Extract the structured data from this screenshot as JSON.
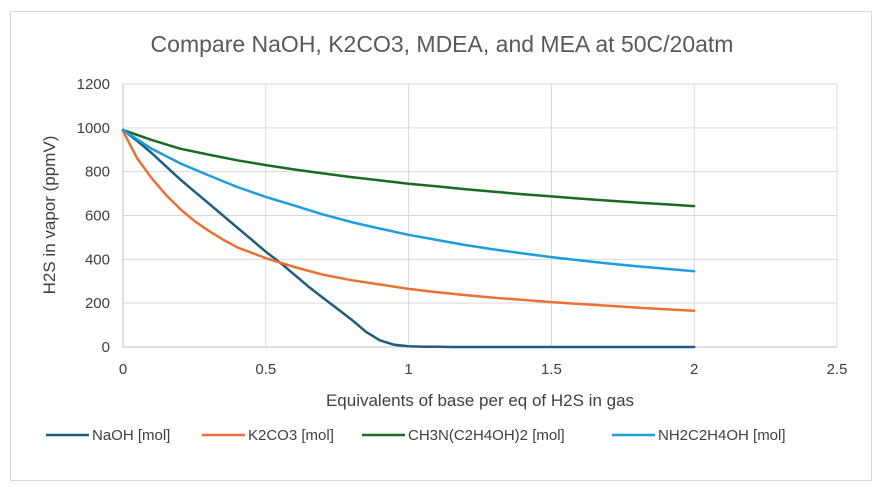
{
  "chart_data": {
    "type": "line",
    "title": "Compare NaOH, K2CO3, MDEA, and MEA at 50C/20atm",
    "xlabel": "Equivalents of base per eq of H2S in gas",
    "ylabel": "H2S in vapor (ppmV)",
    "xlim": [
      0,
      2.5
    ],
    "ylim": [
      0,
      1200
    ],
    "x_ticks": [
      "0",
      "0.5",
      "1",
      "1.5",
      "2",
      "2.5"
    ],
    "y_ticks": [
      "0",
      "200",
      "400",
      "600",
      "800",
      "1000",
      "1200"
    ],
    "grid": true,
    "legend_position": "bottom",
    "series": [
      {
        "name": "NaOH [mol]",
        "color": "#1f5c7e",
        "x": [
          0,
          0.05,
          0.1,
          0.15,
          0.2,
          0.25,
          0.3,
          0.35,
          0.4,
          0.45,
          0.5,
          0.55,
          0.6,
          0.65,
          0.7,
          0.75,
          0.8,
          0.85,
          0.9,
          0.95,
          1.0,
          1.05,
          1.1,
          1.15,
          1.2,
          1.5,
          2.0
        ],
        "y": [
          990,
          940,
          885,
          825,
          765,
          710,
          655,
          600,
          545,
          490,
          435,
          385,
          330,
          275,
          225,
          175,
          125,
          70,
          30,
          10,
          3,
          1,
          1,
          0,
          0,
          0,
          0
        ]
      },
      {
        "name": "K2CO3 [mol]",
        "color": "#e97132",
        "x": [
          0,
          0.05,
          0.1,
          0.15,
          0.2,
          0.25,
          0.3,
          0.35,
          0.4,
          0.5,
          0.6,
          0.7,
          0.8,
          0.9,
          1.0,
          1.1,
          1.2,
          1.3,
          1.4,
          1.5,
          1.6,
          1.7,
          1.8,
          1.9,
          2.0
        ],
        "y": [
          985,
          860,
          770,
          695,
          630,
          575,
          530,
          490,
          455,
          405,
          365,
          330,
          305,
          285,
          265,
          250,
          237,
          225,
          215,
          205,
          196,
          188,
          180,
          172,
          165
        ]
      },
      {
        "name": "CH3N(C2H4OH)2 [mol]",
        "color": "#196b24",
        "x": [
          0,
          0.1,
          0.2,
          0.3,
          0.4,
          0.5,
          0.6,
          0.7,
          0.8,
          0.9,
          1.0,
          1.1,
          1.2,
          1.3,
          1.4,
          1.5,
          1.6,
          1.7,
          1.8,
          1.9,
          2.0
        ],
        "y": [
          990,
          945,
          905,
          878,
          852,
          830,
          810,
          792,
          775,
          760,
          745,
          733,
          720,
          708,
          697,
          687,
          677,
          668,
          659,
          651,
          643
        ]
      },
      {
        "name": "NH2C2H4OH [mol]",
        "color": "#1f9ddb",
        "x": [
          0,
          0.1,
          0.2,
          0.3,
          0.4,
          0.5,
          0.6,
          0.7,
          0.8,
          0.9,
          1.0,
          1.1,
          1.2,
          1.3,
          1.4,
          1.5,
          1.6,
          1.7,
          1.8,
          1.9,
          2.0
        ],
        "y": [
          990,
          905,
          838,
          783,
          730,
          685,
          645,
          605,
          570,
          540,
          512,
          488,
          465,
          445,
          427,
          410,
          395,
          381,
          368,
          357,
          346
        ]
      }
    ]
  }
}
